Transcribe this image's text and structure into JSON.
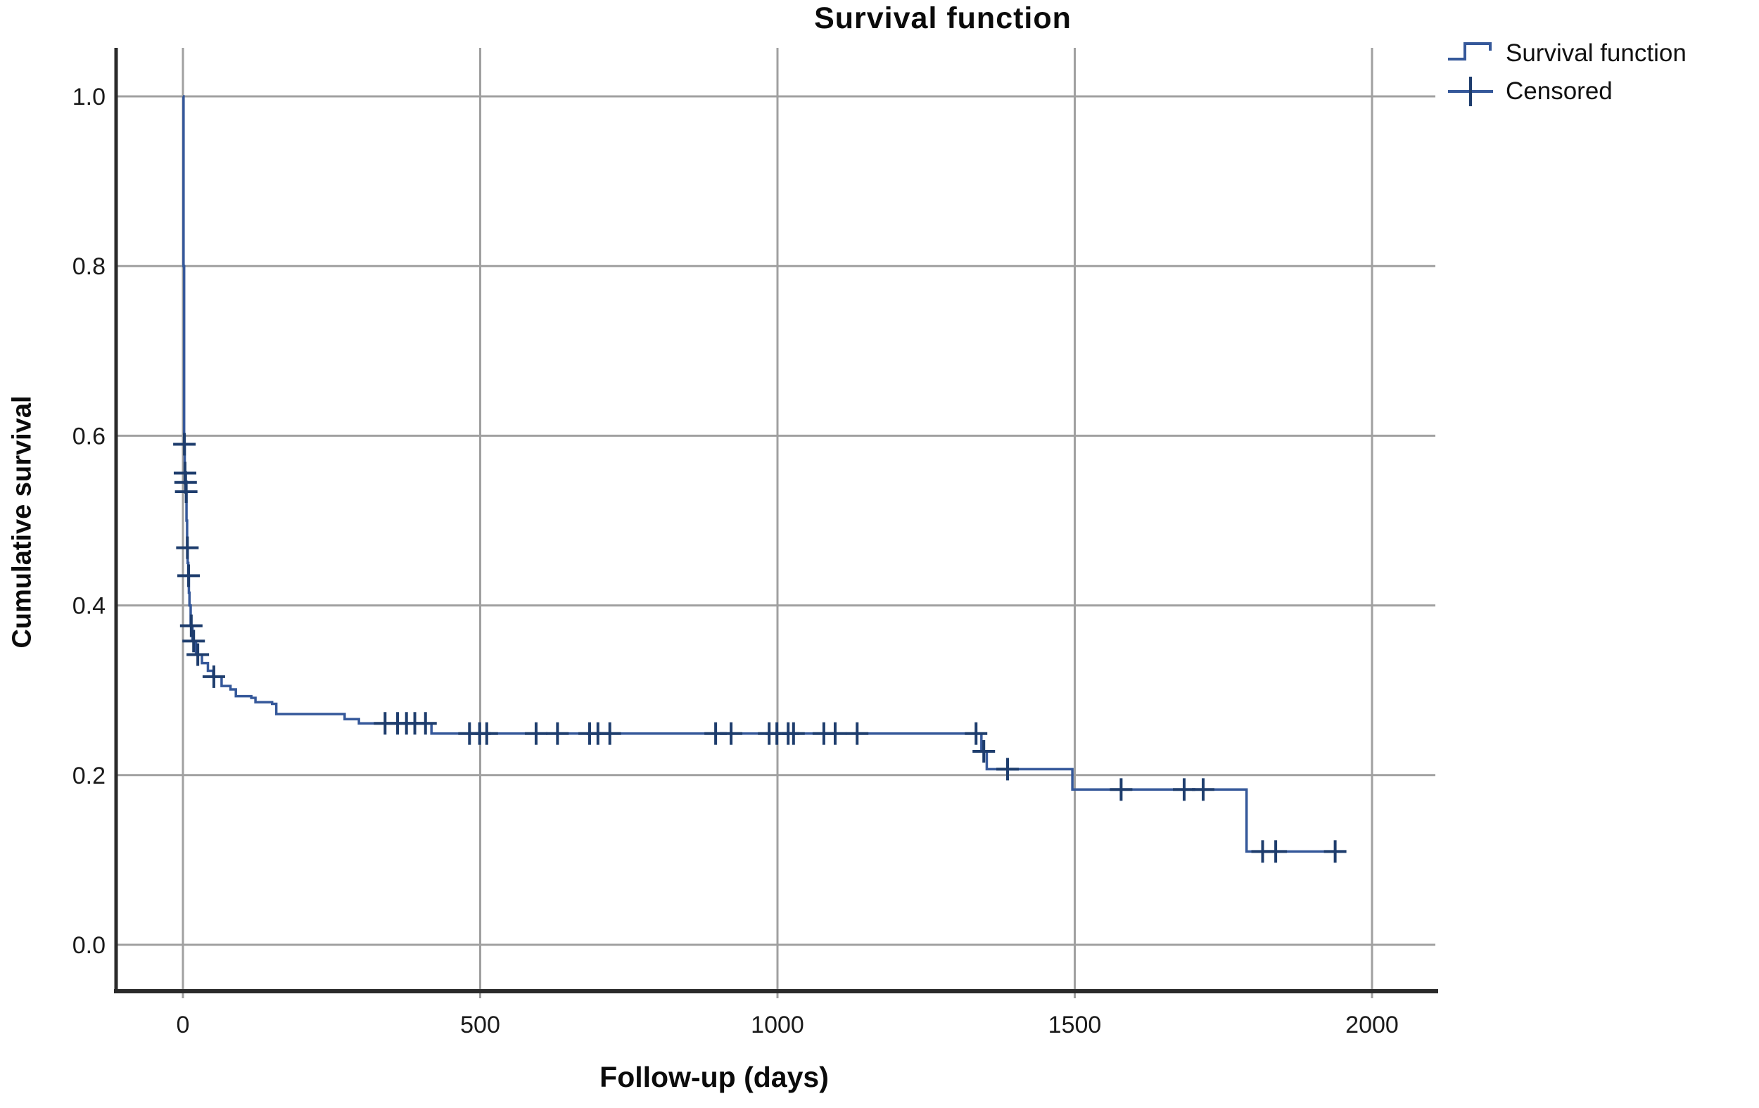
{
  "title": "Survival function",
  "legend": {
    "items": [
      {
        "symbol": "survival-step-line",
        "label": "Survival function"
      },
      {
        "symbol": "censored-cross",
        "label": "Censored"
      }
    ]
  },
  "y_axis": {
    "title": "Cumulative survival",
    "ticks": [
      "1.0",
      "0.8",
      "0.6",
      "0.4",
      "0.2",
      "0.0"
    ],
    "tick_values": [
      1.0,
      0.8,
      0.6,
      0.4,
      0.2,
      0.0
    ]
  },
  "x_axis": {
    "title": "Follow-up (days)",
    "ticks": [
      "0",
      "500",
      "1000",
      "1500",
      "2000"
    ],
    "tick_values": [
      0,
      500,
      1000,
      1500,
      2000
    ]
  },
  "colors": {
    "curve": "#35589a",
    "censor": "#1e3d6d",
    "grid": "#a0a0a0",
    "axis": "#2a2a2a",
    "text": "#1a1a1a",
    "background": "#ffffff"
  },
  "chart_data": {
    "type": "line",
    "subtype": "kaplan-meier-step",
    "title": "Survival function",
    "xlabel": "Follow-up (days)",
    "ylabel": "Cumulative survival",
    "xlim": [
      0,
      2000
    ],
    "ylim": [
      0.0,
      1.0
    ],
    "grid": true,
    "legend_position": "top-right",
    "series_name": "Survival function",
    "final_day": 1950,
    "steps": [
      [
        0,
        1.0
      ],
      [
        1,
        0.8
      ],
      [
        2,
        0.59
      ],
      [
        3,
        0.556
      ],
      [
        4,
        0.545
      ],
      [
        5,
        0.534
      ],
      [
        6,
        0.5
      ],
      [
        7,
        0.468
      ],
      [
        8,
        0.45
      ],
      [
        9,
        0.435
      ],
      [
        10,
        0.415
      ],
      [
        11,
        0.4
      ],
      [
        13,
        0.376
      ],
      [
        16,
        0.358
      ],
      [
        22,
        0.342
      ],
      [
        32,
        0.332
      ],
      [
        42,
        0.323
      ],
      [
        51,
        0.316
      ],
      [
        65,
        0.305
      ],
      [
        80,
        0.301
      ],
      [
        89,
        0.293
      ],
      [
        115,
        0.291
      ],
      [
        122,
        0.286
      ],
      [
        150,
        0.284
      ],
      [
        157,
        0.272
      ],
      [
        272,
        0.266
      ],
      [
        296,
        0.261
      ],
      [
        418,
        0.249
      ],
      [
        1343,
        0.228
      ],
      [
        1352,
        0.207
      ],
      [
        1496,
        0.183
      ],
      [
        1789,
        0.11
      ]
    ],
    "censored": [
      [
        2.5,
        0.59
      ],
      [
        3.5,
        0.556
      ],
      [
        4.5,
        0.545
      ],
      [
        5.5,
        0.534
      ],
      [
        7.5,
        0.468
      ],
      [
        9.5,
        0.435
      ],
      [
        14,
        0.376
      ],
      [
        18,
        0.358
      ],
      [
        25,
        0.342
      ],
      [
        52,
        0.316
      ],
      [
        340,
        0.261
      ],
      [
        361,
        0.261
      ],
      [
        376,
        0.261
      ],
      [
        390,
        0.261
      ],
      [
        408,
        0.261
      ],
      [
        482,
        0.249
      ],
      [
        499,
        0.249
      ],
      [
        511,
        0.249
      ],
      [
        594,
        0.249
      ],
      [
        630,
        0.249
      ],
      [
        684,
        0.249
      ],
      [
        698,
        0.249
      ],
      [
        718,
        0.249
      ],
      [
        896,
        0.249
      ],
      [
        922,
        0.249
      ],
      [
        986,
        0.249
      ],
      [
        999,
        0.249
      ],
      [
        1018,
        0.249
      ],
      [
        1027,
        0.249
      ],
      [
        1078,
        0.249
      ],
      [
        1097,
        0.249
      ],
      [
        1134,
        0.249
      ],
      [
        1334,
        0.249
      ],
      [
        1347,
        0.228
      ],
      [
        1387,
        0.207
      ],
      [
        1578,
        0.183
      ],
      [
        1684,
        0.183
      ],
      [
        1716,
        0.183
      ],
      [
        1816,
        0.11
      ],
      [
        1838,
        0.11
      ],
      [
        1938,
        0.11
      ]
    ]
  }
}
